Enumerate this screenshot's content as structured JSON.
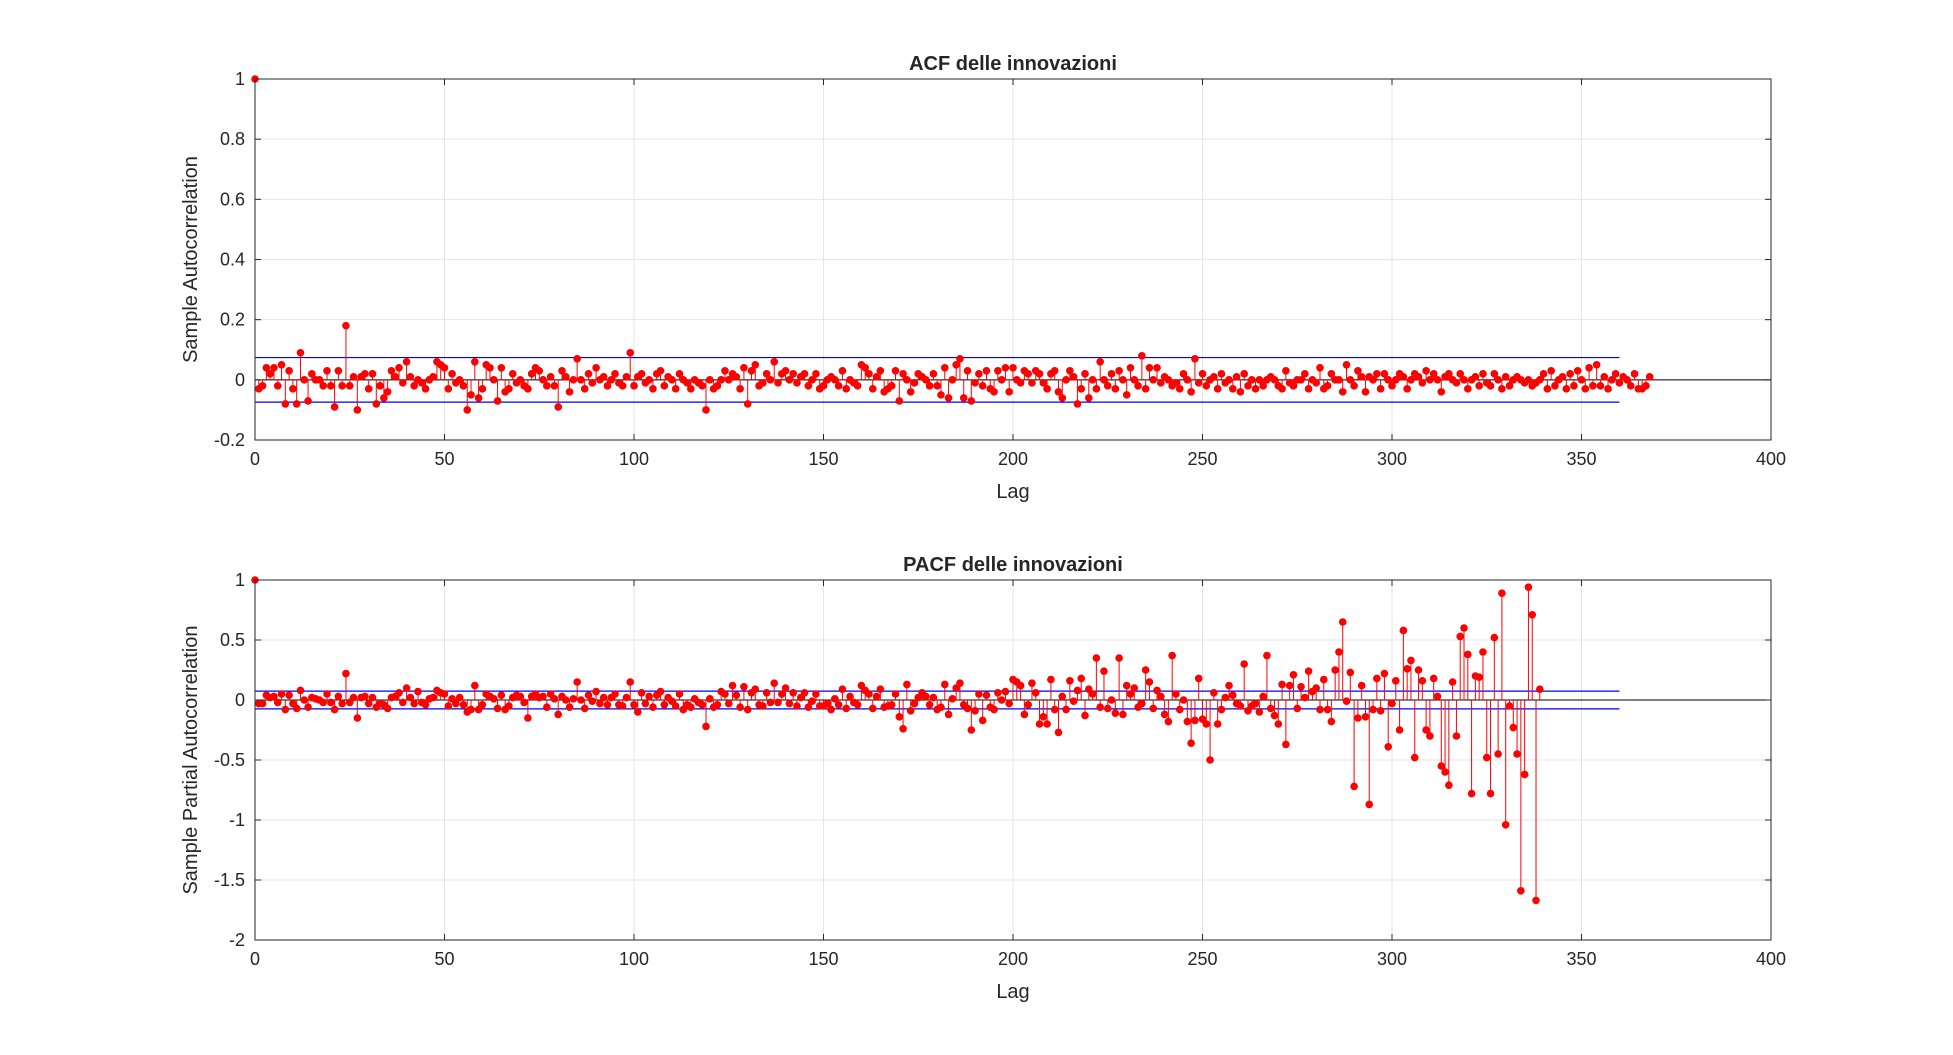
{
  "chart_data": [
    {
      "type": "stem",
      "title": "ACF delle innovazioni",
      "xlabel": "Lag",
      "ylabel": "Sample Autocorrelation",
      "xlim": [
        0,
        400
      ],
      "ylim": [
        -0.2,
        1
      ],
      "xticks": [
        0,
        50,
        100,
        150,
        200,
        250,
        300,
        350,
        400
      ],
      "yticks": [
        -0.2,
        0,
        0.2,
        0.4,
        0.6,
        0.8,
        1
      ],
      "xtick_labels": [
        "0",
        "50",
        "100",
        "150",
        "200",
        "250",
        "300",
        "350",
        "400"
      ],
      "ytick_labels": [
        "-0.2",
        "0",
        "0.2",
        "0.4",
        "0.6",
        "0.8",
        "1"
      ],
      "grid": true,
      "confidence_bounds": [
        0.074,
        -0.074
      ],
      "stem_color": "#ff0000",
      "bound_color": "#0000ff",
      "max_lag": 360,
      "series": [
        {
          "values": [
            1.0,
            -0.03,
            -0.02,
            0.04,
            0.02,
            0.04,
            -0.02,
            0.05,
            -0.08,
            0.03,
            -0.03,
            -0.08,
            0.09,
            0.0,
            -0.07,
            0.02,
            0.0,
            0.0,
            -0.02,
            0.03,
            -0.02,
            -0.09,
            0.03,
            -0.02,
            0.18,
            -0.02,
            0.01,
            -0.1,
            0.01,
            0.02,
            -0.03,
            0.02,
            -0.08,
            -0.02,
            -0.06,
            -0.04,
            0.03,
            0.01,
            0.04,
            -0.01,
            0.06,
            0.01,
            -0.02,
            0.0,
            -0.01,
            -0.03,
            0.0,
            0.01,
            0.06,
            0.05,
            0.04,
            -0.03,
            0.02,
            -0.01,
            0.0,
            -0.02,
            -0.1,
            -0.05,
            0.06,
            -0.06,
            -0.03,
            0.05,
            0.04,
            0.0,
            -0.07,
            0.04,
            -0.04,
            -0.03,
            0.02,
            -0.01,
            0.0,
            -0.02,
            -0.03,
            0.02,
            0.04,
            0.03,
            0.0,
            -0.02,
            0.01,
            -0.02,
            -0.09,
            0.03,
            0.01,
            -0.04,
            0.0,
            0.07,
            0.0,
            -0.03,
            0.02,
            -0.01,
            0.04,
            0.0,
            0.01,
            -0.02,
            0.0,
            0.02,
            -0.01,
            -0.02,
            0.01,
            0.09,
            -0.02,
            0.01,
            0.02,
            -0.01,
            0.0,
            -0.03,
            0.02,
            0.03,
            -0.02,
            0.01,
            0.0,
            -0.03,
            0.02,
            0.0,
            -0.01,
            -0.03,
            0.0,
            -0.01,
            -0.02,
            -0.1,
            0.0,
            -0.03,
            -0.02,
            0.0,
            0.03,
            0.0,
            0.02,
            0.01,
            -0.03,
            0.04,
            -0.08,
            0.03,
            0.05,
            -0.02,
            -0.01,
            0.02,
            0.0,
            0.06,
            -0.01,
            0.02,
            0.03,
            0.0,
            0.02,
            -0.01,
            0.01,
            0.02,
            -0.02,
            0.0,
            0.02,
            -0.03,
            -0.02,
            0.0,
            0.01,
            0.0,
            -0.02,
            0.03,
            -0.03,
            0.0,
            -0.01,
            -0.02,
            0.05,
            0.04,
            0.02,
            -0.03,
            0.01,
            0.03,
            -0.04,
            -0.03,
            -0.02,
            0.03,
            -0.07,
            0.02,
            0.0,
            -0.04,
            -0.01,
            0.02,
            0.01,
            0.0,
            -0.02,
            0.02,
            -0.02,
            -0.05,
            0.04,
            -0.06,
            0.0,
            0.05,
            0.07,
            -0.06,
            0.03,
            -0.07,
            -0.01,
            0.02,
            -0.02,
            0.03,
            -0.03,
            -0.04,
            0.03,
            0.0,
            0.04,
            -0.04,
            0.04,
            0.0,
            -0.01,
            0.03,
            0.02,
            -0.01,
            0.03,
            0.02,
            -0.01,
            -0.03,
            0.02,
            0.03,
            -0.04,
            -0.06,
            0.0,
            0.03,
            0.01,
            -0.08,
            -0.03,
            0.02,
            -0.06,
            0.0,
            -0.03,
            0.06,
            0.0,
            -0.02,
            0.02,
            -0.03,
            0.03,
            0.0,
            -0.05,
            0.04,
            0.0,
            -0.02,
            0.08,
            -0.03,
            0.04,
            0.0,
            0.04,
            -0.01,
            0.01,
            0.0,
            -0.02,
            -0.01,
            -0.03,
            0.02,
            0.0,
            -0.04,
            0.07,
            -0.01,
            0.02,
            -0.02,
            0.0,
            0.01,
            -0.03,
            0.02,
            -0.01,
            0.0,
            -0.03,
            0.01,
            -0.04,
            0.02,
            -0.02,
            0.0,
            -0.03,
            0.0,
            -0.02,
            0.0,
            0.01,
            0.0,
            -0.02,
            -0.03,
            0.03,
            -0.01,
            -0.02,
            0.0,
            0.0,
            0.02,
            -0.03,
            0.0,
            -0.01,
            0.04,
            -0.03,
            -0.02,
            0.02,
            0.0,
            0.0,
            -0.04,
            0.05,
            0.0,
            -0.02,
            0.03,
            0.01,
            -0.04,
            0.01,
            0.0,
            0.02,
            -0.03,
            0.02,
            0.0,
            -0.02,
            0.0,
            0.02,
            0.01,
            -0.03,
            0.0,
            0.02,
            0.01,
            -0.01,
            0.03,
            0.0,
            0.02,
            0.0,
            -0.04,
            0.01,
            0.02,
            0.0,
            -0.01,
            0.02,
            0.0,
            -0.03,
            0.0,
            0.01,
            -0.02,
            0.02,
            -0.01,
            -0.02,
            0.02,
            0.0,
            -0.03,
            0.01,
            -0.02,
            0.0,
            0.01,
            0.0,
            -0.01,
            0.0,
            -0.02,
            -0.01,
            0.0,
            0.02,
            -0.03,
            0.03,
            -0.02,
            0.0,
            0.01,
            -0.03,
            0.02,
            -0.02,
            0.03,
            0.0,
            -0.03,
            0.04,
            -0.02,
            0.05,
            -0.02,
            0.01,
            -0.03,
            0.0,
            0.02,
            -0.01,
            0.01,
            0.0,
            -0.02,
            0.02,
            -0.03,
            -0.03,
            -0.02,
            0.01
          ]
        }
      ]
    },
    {
      "type": "stem",
      "title": "PACF delle innovazioni",
      "xlabel": "Lag",
      "ylabel": "Sample Partial Autocorrelation",
      "xlim": [
        0,
        400
      ],
      "ylim": [
        -2,
        1
      ],
      "xticks": [
        0,
        50,
        100,
        150,
        200,
        250,
        300,
        350,
        400
      ],
      "yticks": [
        -2,
        -1.5,
        -1,
        -0.5,
        0,
        0.5,
        1
      ],
      "xtick_labels": [
        "0",
        "50",
        "100",
        "150",
        "200",
        "250",
        "300",
        "350",
        "400"
      ],
      "ytick_labels": [
        "-2",
        "-1.5",
        "-1",
        "-0.5",
        "0",
        "0.5",
        "1"
      ],
      "grid": true,
      "confidence_bounds": [
        0.074,
        -0.074
      ],
      "stem_color": "#ff0000",
      "bound_color": "#0000ff",
      "max_lag": 360,
      "series": [
        {
          "values": [
            1.0,
            -0.03,
            -0.03,
            0.04,
            0.02,
            0.03,
            -0.02,
            0.05,
            -0.08,
            0.04,
            -0.03,
            -0.07,
            0.08,
            0.0,
            -0.06,
            0.02,
            0.01,
            0.0,
            -0.02,
            0.05,
            -0.02,
            -0.08,
            0.03,
            -0.03,
            0.22,
            -0.02,
            0.02,
            -0.15,
            0.02,
            0.03,
            -0.03,
            0.02,
            -0.06,
            -0.03,
            -0.04,
            -0.07,
            0.02,
            0.03,
            0.06,
            -0.02,
            0.1,
            0.02,
            -0.03,
            0.07,
            -0.02,
            -0.04,
            0.01,
            0.02,
            0.08,
            0.06,
            0.05,
            -0.05,
            0.01,
            -0.03,
            0.02,
            -0.04,
            -0.1,
            -0.08,
            0.12,
            -0.08,
            -0.04,
            0.05,
            0.03,
            0.01,
            -0.07,
            0.04,
            -0.08,
            -0.05,
            0.02,
            0.04,
            0.03,
            -0.02,
            -0.15,
            0.03,
            0.05,
            0.02,
            0.03,
            -0.06,
            0.05,
            0.01,
            -0.12,
            0.03,
            0.0,
            -0.06,
            0.01,
            0.15,
            0.0,
            -0.07,
            0.04,
            -0.01,
            0.07,
            -0.03,
            0.02,
            -0.04,
            0.02,
            0.05,
            -0.04,
            -0.05,
            0.02,
            0.15,
            -0.04,
            -0.1,
            0.06,
            -0.03,
            0.03,
            -0.06,
            0.04,
            0.07,
            -0.04,
            0.02,
            -0.01,
            -0.05,
            0.05,
            -0.08,
            -0.04,
            -0.06,
            0.01,
            -0.02,
            -0.04,
            -0.22,
            0.01,
            -0.06,
            -0.04,
            0.07,
            0.05,
            -0.03,
            0.12,
            0.04,
            -0.06,
            0.11,
            -0.08,
            0.06,
            0.09,
            -0.04,
            -0.05,
            0.06,
            -0.02,
            0.14,
            -0.02,
            0.05,
            0.1,
            -0.03,
            0.06,
            -0.05,
            0.02,
            0.06,
            -0.06,
            -0.01,
            0.05,
            -0.05,
            -0.05,
            -0.03,
            -0.08,
            0.01,
            -0.04,
            0.09,
            -0.07,
            0.03,
            -0.02,
            -0.04,
            0.12,
            0.08,
            0.05,
            -0.07,
            0.03,
            0.09,
            -0.06,
            -0.05,
            -0.04,
            0.05,
            -0.14,
            -0.24,
            0.13,
            -0.09,
            -0.03,
            0.02,
            0.06,
            0.03,
            -0.04,
            0.02,
            -0.08,
            -0.06,
            0.13,
            -0.12,
            0.01,
            0.1,
            0.14,
            -0.04,
            -0.07,
            -0.25,
            -0.09,
            0.05,
            -0.17,
            0.04,
            -0.06,
            -0.08,
            0.06,
            0.0,
            0.07,
            -0.03,
            0.17,
            0.15,
            0.12,
            -0.12,
            -0.04,
            0.14,
            0.06,
            -0.2,
            -0.14,
            -0.2,
            0.17,
            -0.08,
            -0.27,
            0.03,
            -0.08,
            0.16,
            -0.01,
            0.08,
            0.18,
            -0.13,
            0.09,
            0.05,
            0.35,
            -0.06,
            0.24,
            -0.07,
            0.0,
            -0.11,
            0.35,
            -0.12,
            0.12,
            0.05,
            0.1,
            -0.06,
            -0.03,
            0.25,
            0.15,
            -0.07,
            0.08,
            0.03,
            -0.12,
            -0.18,
            0.37,
            0.05,
            -0.08,
            0.0,
            -0.18,
            -0.36,
            -0.17,
            0.18,
            -0.16,
            -0.2,
            -0.5,
            0.06,
            -0.2,
            -0.08,
            0.02,
            0.12,
            0.04,
            -0.03,
            -0.05,
            0.3,
            -0.09,
            -0.05,
            -0.03,
            -0.1,
            0.03,
            0.37,
            -0.07,
            -0.13,
            -0.2,
            0.13,
            -0.37,
            0.12,
            0.21,
            -0.07,
            0.11,
            0.02,
            0.24,
            0.07,
            0.1,
            -0.08,
            0.17,
            -0.08,
            -0.18,
            0.25,
            0.4,
            0.65,
            -0.01,
            0.23,
            -0.72,
            -0.15,
            0.12,
            -0.14,
            -0.87,
            -0.08,
            0.18,
            -0.09,
            0.22,
            -0.39,
            -0.03,
            0.16,
            -0.25,
            0.58,
            0.26,
            0.33,
            -0.48,
            0.25,
            0.16,
            -0.25,
            -0.3,
            0.18,
            0.03,
            -0.55,
            -0.6,
            -0.71,
            0.15,
            -0.3,
            0.53,
            0.6,
            0.38,
            -0.78,
            0.2,
            0.19,
            0.4,
            -0.48,
            -0.78,
            0.52,
            -0.45,
            0.89,
            -1.04,
            -0.05,
            -0.23,
            -0.45,
            -1.59,
            -0.62,
            0.94,
            0.71,
            -1.67,
            0.09
          ]
        }
      ]
    }
  ]
}
